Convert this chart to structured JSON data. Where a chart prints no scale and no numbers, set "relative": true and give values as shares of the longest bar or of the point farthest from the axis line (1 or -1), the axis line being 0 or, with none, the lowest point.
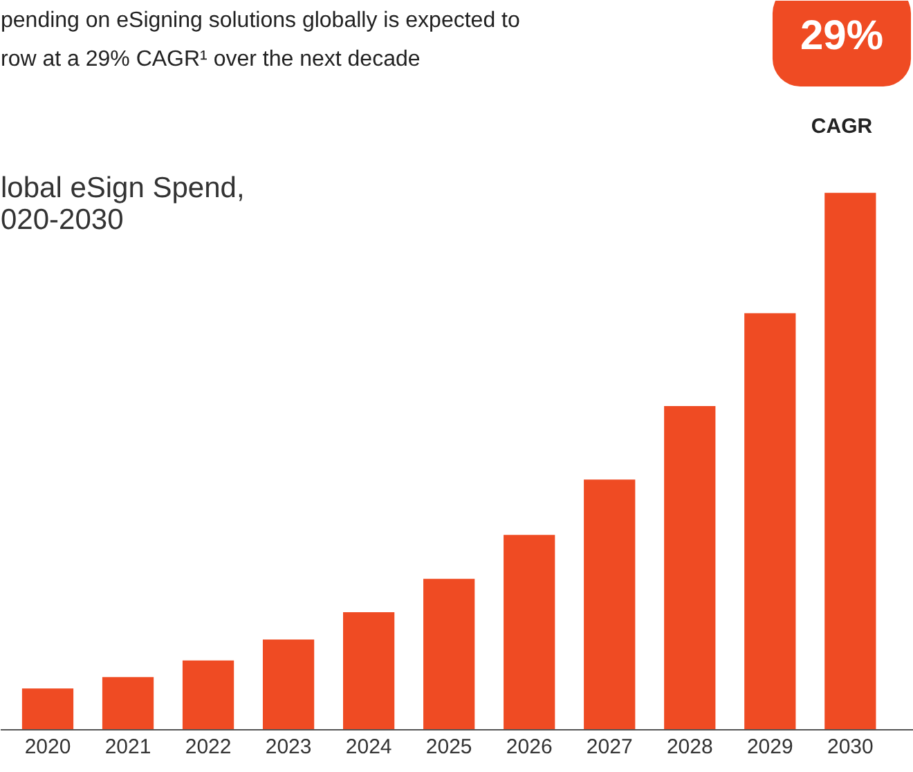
{
  "chart_data": {
    "type": "bar",
    "title": "lobal eSign Spend,",
    "subtitle": "020-2030",
    "annotations": [
      "pending on eSigning solutions globally is expected to",
      "row at a 29% CAGR¹ over the next decade",
      "29%",
      "CAGR"
    ],
    "categories": [
      "2020",
      "2021",
      "2022",
      "2023",
      "2024",
      "2025",
      "2026",
      "2027",
      "2028",
      "2029",
      "2030"
    ],
    "relative": true,
    "color": "#ef4b23",
    "values": [
      0.077,
      0.098,
      0.129,
      0.168,
      0.219,
      0.281,
      0.363,
      0.466,
      0.603,
      0.776,
      1
    ]
  }
}
